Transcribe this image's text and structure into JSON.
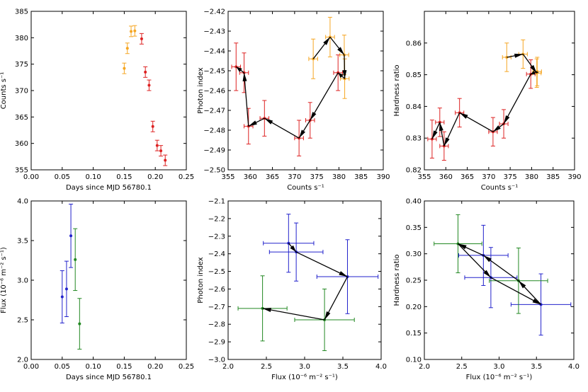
{
  "colors": {
    "orange": "#f5a623",
    "red": "#dd2222",
    "blue": "#2222cc",
    "green": "#228822",
    "black": "#000000"
  },
  "chart_data": [
    {
      "id": "p1",
      "type": "scatter",
      "xlabel": "Days since MJD 56780.1",
      "ylabel": "Counts s⁻¹",
      "xlim": [
        0.0,
        0.25
      ],
      "ylim": [
        355,
        385
      ],
      "xticks": [
        0.0,
        0.05,
        0.1,
        0.15,
        0.2,
        0.25
      ],
      "xtick_labels": [
        "0.00",
        "0.05",
        "0.10",
        "0.15",
        "0.20",
        "0.25"
      ],
      "yticks": [
        355,
        360,
        365,
        370,
        375,
        380,
        385
      ],
      "ytick_labels": [
        "355",
        "360",
        "365",
        "370",
        "375",
        "380",
        "385"
      ],
      "series": [
        {
          "name": "orange",
          "color": "orange",
          "x": [
            0.15,
            0.155,
            0.161,
            0.167
          ],
          "y": [
            374.2,
            378.0,
            381.2,
            381.3
          ],
          "yerr": [
            1.0,
            1.0,
            1.0,
            1.0
          ]
        },
        {
          "name": "red",
          "color": "red",
          "x": [
            0.178,
            0.184,
            0.19,
            0.196,
            0.203,
            0.209,
            0.216
          ],
          "y": [
            379.8,
            373.5,
            371.0,
            363.2,
            359.6,
            358.6,
            356.8
          ],
          "yerr": [
            1.0,
            1.0,
            1.0,
            1.0,
            1.0,
            1.0,
            1.0
          ]
        }
      ]
    },
    {
      "id": "p2",
      "type": "scatter",
      "xlabel": "Counts s⁻¹",
      "ylabel": "Photon index",
      "xlim": [
        355,
        390
      ],
      "ylim": [
        -2.5,
        -2.42
      ],
      "xticks": [
        355,
        360,
        365,
        370,
        375,
        380,
        385,
        390
      ],
      "xtick_labels": [
        "355",
        "360",
        "365",
        "370",
        "375",
        "380",
        "385",
        "390"
      ],
      "yticks": [
        -2.5,
        -2.49,
        -2.48,
        -2.47,
        -2.46,
        -2.45,
        -2.44,
        -2.43,
        -2.42
      ],
      "ytick_labels": [
        "−2.50",
        "−2.49",
        "−2.48",
        "−2.47",
        "−2.46",
        "−2.45",
        "−2.44",
        "−2.43",
        "−2.42"
      ],
      "series": [
        {
          "name": "orange",
          "color": "orange",
          "x": [
            374.2,
            378.0,
            381.2,
            381.3
          ],
          "y": [
            -2.444,
            -2.433,
            -2.442,
            -2.454
          ],
          "xerr": [
            1.0,
            1.0,
            1.0,
            1.0
          ],
          "yerr": [
            0.01,
            0.01,
            0.01,
            0.01
          ]
        },
        {
          "name": "red",
          "color": "red",
          "x": [
            356.8,
            358.6,
            359.6,
            363.2,
            371.0,
            373.5,
            379.8
          ],
          "y": [
            -2.448,
            -2.451,
            -2.478,
            -2.474,
            -2.484,
            -2.475,
            -2.451
          ],
          "xerr": [
            1.0,
            1.0,
            1.0,
            1.0,
            1.0,
            1.0,
            1.0
          ],
          "yerr": [
            0.012,
            0.01,
            0.009,
            0.009,
            0.009,
            0.009,
            0.009
          ]
        }
      ],
      "path": {
        "x": [
          374.2,
          378.0,
          381.2,
          381.3,
          379.8,
          373.5,
          371.0,
          363.2,
          359.6,
          358.6,
          356.8
        ],
        "y": [
          -2.444,
          -2.433,
          -2.442,
          -2.454,
          -2.451,
          -2.475,
          -2.484,
          -2.474,
          -2.478,
          -2.451,
          -2.448
        ]
      }
    },
    {
      "id": "p3",
      "type": "scatter",
      "xlabel": "Counts s⁻¹",
      "ylabel": "Hardness ratio",
      "xlim": [
        355,
        390
      ],
      "ylim": [
        0.82,
        0.87
      ],
      "xticks": [
        355,
        360,
        365,
        370,
        375,
        380,
        385,
        390
      ],
      "xtick_labels": [
        "355",
        "360",
        "365",
        "370",
        "375",
        "380",
        "385",
        "390"
      ],
      "yticks": [
        0.82,
        0.83,
        0.84,
        0.85,
        0.86
      ],
      "ytick_labels": [
        "0.82",
        "0.83",
        "0.84",
        "0.85",
        "0.86"
      ],
      "series": [
        {
          "name": "orange",
          "color": "orange",
          "x": [
            374.2,
            378.0,
            381.2,
            381.3
          ],
          "y": [
            0.8555,
            0.8565,
            0.8505,
            0.851
          ],
          "xerr": [
            1.0,
            1.0,
            1.0,
            1.0
          ],
          "yerr": [
            0.0045,
            0.0045,
            0.0045,
            0.0045
          ]
        },
        {
          "name": "red",
          "color": "red",
          "x": [
            356.8,
            358.6,
            359.6,
            363.2,
            371.0,
            373.5,
            379.8
          ],
          "y": [
            0.8297,
            0.835,
            0.8275,
            0.838,
            0.832,
            0.8345,
            0.8502
          ],
          "xerr": [
            1.0,
            1.0,
            1.0,
            1.0,
            1.0,
            1.0,
            1.0
          ],
          "yerr": [
            0.006,
            0.0045,
            0.0045,
            0.0045,
            0.0045,
            0.0045,
            0.0045
          ]
        }
      ],
      "path": {
        "x": [
          374.2,
          378.0,
          381.2,
          381.3,
          379.8,
          373.5,
          371.0,
          363.2,
          359.6,
          358.6,
          356.8
        ],
        "y": [
          0.8555,
          0.8565,
          0.8505,
          0.851,
          0.8502,
          0.8345,
          0.832,
          0.838,
          0.8275,
          0.835,
          0.8297
        ]
      }
    },
    {
      "id": "p4",
      "type": "scatter",
      "xlabel": "Days since MJD 56780.1",
      "ylabel": "Flux (10⁻⁶ m⁻² s⁻¹)",
      "xlim": [
        0.0,
        0.25
      ],
      "ylim": [
        2.0,
        4.0
      ],
      "xticks": [
        0.0,
        0.05,
        0.1,
        0.15,
        0.2,
        0.25
      ],
      "xtick_labels": [
        "0.00",
        "0.05",
        "0.10",
        "0.15",
        "0.20",
        "0.25"
      ],
      "yticks": [
        2.0,
        2.5,
        3.0,
        3.5,
        4.0
      ],
      "ytick_labels": [
        "2.0",
        "2.5",
        "3.0",
        "3.5",
        "4.0"
      ],
      "series": [
        {
          "name": "blue",
          "color": "blue",
          "x": [
            0.05,
            0.057,
            0.064
          ],
          "y": [
            2.79,
            2.89,
            3.56
          ],
          "yerr": [
            0.33,
            0.35,
            0.4
          ]
        },
        {
          "name": "green",
          "color": "green",
          "x": [
            0.071,
            0.078
          ],
          "y": [
            3.26,
            2.45
          ],
          "yerr": [
            0.39,
            0.32
          ]
        }
      ]
    },
    {
      "id": "p5",
      "type": "scatter",
      "xlabel": "Flux (10⁻⁶ m⁻² s⁻¹)",
      "ylabel": "Photon index",
      "xlim": [
        2.0,
        4.0
      ],
      "ylim": [
        -3.0,
        -2.1
      ],
      "xticks": [
        2.0,
        2.5,
        3.0,
        3.5,
        4.0
      ],
      "xtick_labels": [
        "2.0",
        "2.5",
        "3.0",
        "3.5",
        "4.0"
      ],
      "yticks": [
        -3.0,
        -2.9,
        -2.8,
        -2.7,
        -2.6,
        -2.5,
        -2.4,
        -2.3,
        -2.2,
        -2.1
      ],
      "ytick_labels": [
        "−3.0",
        "−2.9",
        "−2.8",
        "−2.7",
        "−2.6",
        "−2.5",
        "−2.4",
        "−2.3",
        "−2.2",
        "−2.1"
      ],
      "series": [
        {
          "name": "blue",
          "color": "blue",
          "x": [
            2.79,
            2.89,
            3.56
          ],
          "y": [
            -2.34,
            -2.39,
            -2.53
          ],
          "xerr": [
            0.33,
            0.35,
            0.4
          ],
          "yerr": [
            0.165,
            0.165,
            0.21
          ]
        },
        {
          "name": "green",
          "color": "green",
          "x": [
            3.26,
            2.45
          ],
          "y": [
            -2.775,
            -2.71
          ],
          "xerr": [
            0.39,
            0.32
          ],
          "yerr": [
            0.175,
            0.185
          ]
        }
      ],
      "path": {
        "x": [
          2.79,
          2.89,
          3.56,
          3.26,
          2.45
        ],
        "y": [
          -2.34,
          -2.39,
          -2.53,
          -2.775,
          -2.71
        ]
      }
    },
    {
      "id": "p6",
      "type": "scatter",
      "xlabel": "Flux (10⁻⁶ m⁻² s⁻¹)",
      "ylabel": "Hardness ratio",
      "xlim": [
        2.0,
        4.0
      ],
      "ylim": [
        0.1,
        0.4
      ],
      "xticks": [
        2.0,
        2.5,
        3.0,
        3.5,
        4.0
      ],
      "xtick_labels": [
        "2.0",
        "2.5",
        "3.0",
        "3.5",
        "4.0"
      ],
      "yticks": [
        0.1,
        0.15,
        0.2,
        0.25,
        0.3,
        0.35,
        0.4
      ],
      "ytick_labels": [
        "0.10",
        "0.15",
        "0.20",
        "0.25",
        "0.30",
        "0.35",
        "0.40"
      ],
      "series": [
        {
          "name": "blue",
          "color": "blue",
          "x": [
            2.79,
            2.89,
            3.56
          ],
          "y": [
            0.297,
            0.255,
            0.204
          ],
          "xerr": [
            0.33,
            0.35,
            0.4
          ],
          "yerr": [
            0.057,
            0.057,
            0.058
          ]
        },
        {
          "name": "green",
          "color": "green",
          "x": [
            3.26,
            2.45
          ],
          "y": [
            0.249,
            0.319
          ],
          "xerr": [
            0.39,
            0.32
          ],
          "yerr": [
            0.062,
            0.055
          ]
        }
      ],
      "path": {
        "x": [
          2.45,
          2.89,
          3.56,
          3.26,
          2.79,
          2.45
        ],
        "y": [
          0.319,
          0.255,
          0.204,
          0.249,
          0.297,
          0.319
        ]
      }
    }
  ]
}
